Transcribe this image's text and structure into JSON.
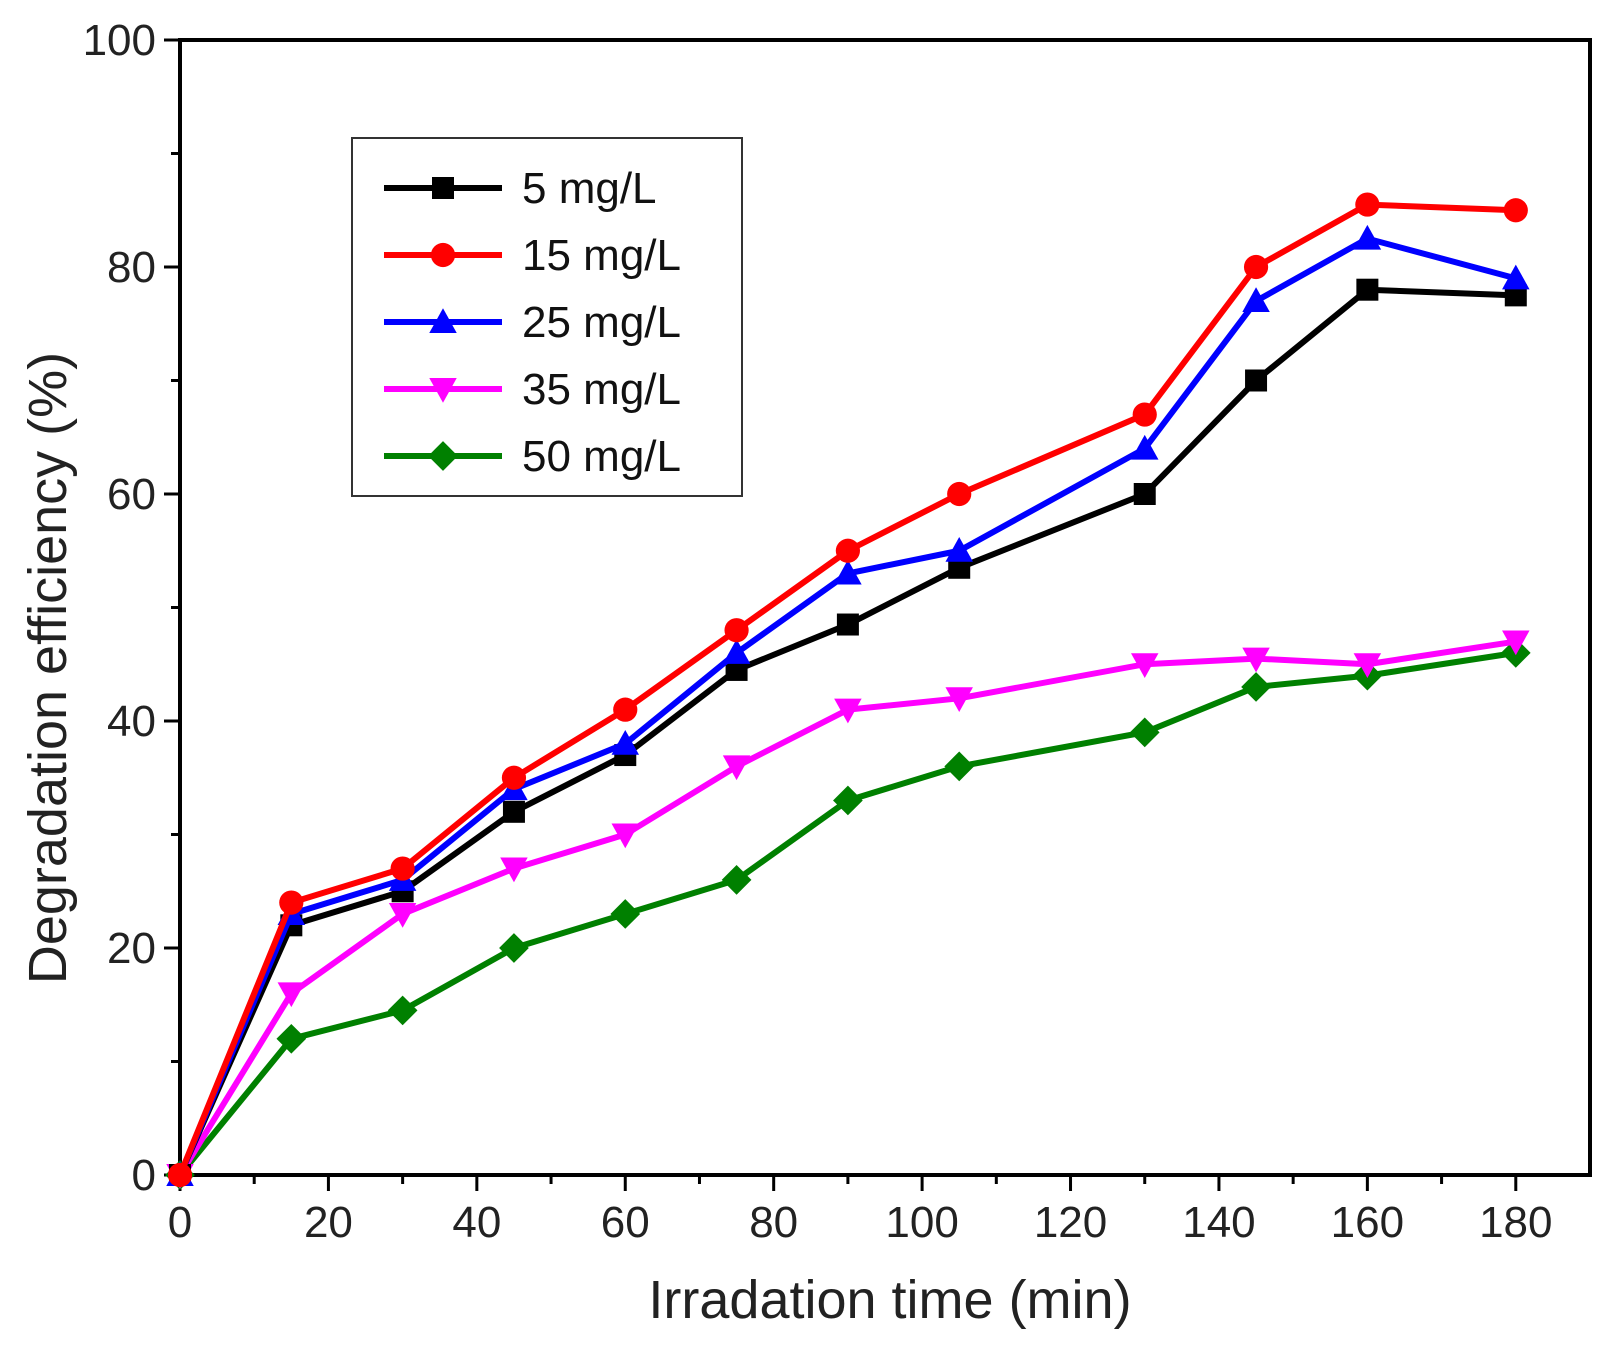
{
  "chart_data": {
    "type": "line",
    "title": "",
    "xlabel": "Irradation time (min)",
    "ylabel": "Degradation efficiency (%)",
    "xlim": [
      0,
      190
    ],
    "ylim": [
      0,
      100
    ],
    "x_ticks": [
      0,
      20,
      40,
      60,
      80,
      100,
      120,
      140,
      160,
      180
    ],
    "y_ticks": [
      0,
      20,
      40,
      60,
      80,
      100
    ],
    "grid": false,
    "legend_position": "top-left",
    "x": [
      0,
      15,
      30,
      45,
      60,
      75,
      90,
      105,
      130,
      145,
      160,
      180
    ],
    "series": [
      {
        "name": "5 mg/L",
        "color": "#000000",
        "marker": "square",
        "values": [
          0,
          22,
          25,
          32,
          37,
          44.5,
          48.5,
          53.5,
          60,
          70,
          78,
          77.5
        ]
      },
      {
        "name": "15 mg/L",
        "color": "#ff0000",
        "marker": "circle",
        "values": [
          0,
          24,
          27,
          35,
          41,
          48,
          55,
          60,
          67,
          80,
          85.5,
          85
        ]
      },
      {
        "name": "25 mg/L",
        "color": "#0000ff",
        "marker": "triangle-up",
        "values": [
          0,
          23,
          26,
          34,
          38,
          46,
          53,
          55,
          64,
          77,
          82.5,
          79
        ]
      },
      {
        "name": "35 mg/L",
        "color": "#ff00ff",
        "marker": "triangle-down",
        "values": [
          0,
          16,
          23,
          27,
          30,
          36,
          41,
          42,
          45,
          45.5,
          45,
          47
        ]
      },
      {
        "name": "50 mg/L",
        "color": "#008000",
        "marker": "diamond",
        "values": [
          0,
          12,
          14.5,
          20,
          23,
          26,
          33,
          36,
          39,
          43,
          44,
          46
        ]
      }
    ]
  }
}
